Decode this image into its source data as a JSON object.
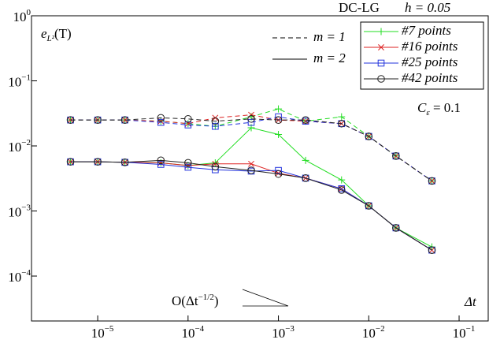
{
  "chart_data": {
    "type": "line",
    "log_x": true,
    "log_y": true,
    "title": "DC-LG",
    "subtitle": "h = 0.05",
    "y_label": [
      "e",
      "L²",
      "(T)"
    ],
    "x_label": "Δt",
    "annotations": [
      [
        "C",
        "ε",
        " = 0.1"
      ],
      [
        "O(Δt",
        "−1/2",
        ")"
      ]
    ],
    "line_styles": [
      {
        "label": "m = 1",
        "dash": "6,4"
      },
      {
        "label": "m = 2",
        "dash": "none"
      }
    ],
    "x": [
      5e-06,
      1e-05,
      2e-05,
      5e-05,
      0.0001,
      0.0002,
      0.0005,
      0.001,
      0.002,
      0.005,
      0.01,
      0.02,
      0.05
    ],
    "series": [
      {
        "name": "#7 points",
        "color": "#22dd22",
        "marker": "plus",
        "values": [
          [
            0.025,
            0.025,
            0.025,
            0.024,
            0.022,
            0.02,
            0.028,
            0.037,
            0.024,
            0.028,
            0.014,
            0.007,
            0.0029
          ],
          [
            0.0057,
            0.0057,
            0.0056,
            0.0055,
            0.005,
            0.0055,
            0.019,
            0.015,
            0.006,
            0.003,
            0.0012,
            0.00055,
            0.00028
          ]
        ]
      },
      {
        "name": "#16 points",
        "color": "#dd2222",
        "marker": "cross",
        "values": [
          [
            0.025,
            0.025,
            0.025,
            0.024,
            0.022,
            0.027,
            0.03,
            0.025,
            0.024,
            0.022,
            0.014,
            0.007,
            0.0029
          ],
          [
            0.0057,
            0.0057,
            0.0056,
            0.0055,
            0.005,
            0.0053,
            0.0053,
            0.0038,
            0.0032,
            0.0022,
            0.0012,
            0.00055,
            0.00025
          ]
        ]
      },
      {
        "name": "#25 points",
        "color": "#2233dd",
        "marker": "square",
        "values": [
          [
            0.025,
            0.025,
            0.025,
            0.023,
            0.021,
            0.02,
            0.023,
            0.028,
            0.024,
            0.022,
            0.014,
            0.007,
            0.0029
          ],
          [
            0.0057,
            0.0057,
            0.0056,
            0.0052,
            0.0047,
            0.0043,
            0.0041,
            0.0042,
            0.0032,
            0.0022,
            0.0012,
            0.00055,
            0.00025
          ]
        ]
      },
      {
        "name": "#42 points",
        "color": "#222222",
        "marker": "circle",
        "values": [
          [
            0.025,
            0.025,
            0.025,
            0.027,
            0.026,
            0.024,
            0.026,
            0.025,
            0.025,
            0.022,
            0.014,
            0.007,
            0.0029
          ],
          [
            0.0057,
            0.0057,
            0.0056,
            0.006,
            0.0055,
            0.0048,
            0.0042,
            0.0037,
            0.0032,
            0.0021,
            0.0012,
            0.00055,
            0.00025
          ]
        ]
      }
    ],
    "xlim": [
      1.85e-06,
      0.21
    ],
    "ylim": [
      2.04e-05,
      1
    ],
    "xticks": [
      {
        "value": 1e-05,
        "label": "10",
        "exponent": "−5"
      },
      {
        "value": 0.0001,
        "label": "10",
        "exponent": "−4"
      },
      {
        "value": 0.001,
        "label": "10",
        "exponent": "−3"
      },
      {
        "value": 0.01,
        "label": "10",
        "exponent": "−2"
      },
      {
        "value": 0.1,
        "label": "10",
        "exponent": "−1"
      }
    ],
    "yticks": [
      {
        "value": 0.0001,
        "label": "10",
        "exponent": "−4"
      },
      {
        "value": 0.001,
        "label": "10",
        "exponent": "−3"
      },
      {
        "value": 0.01,
        "label": "10",
        "exponent": "−2"
      },
      {
        "value": 0.1,
        "label": "10",
        "exponent": "−1"
      },
      {
        "value": 1,
        "label": "10",
        "exponent": "0"
      }
    ]
  }
}
